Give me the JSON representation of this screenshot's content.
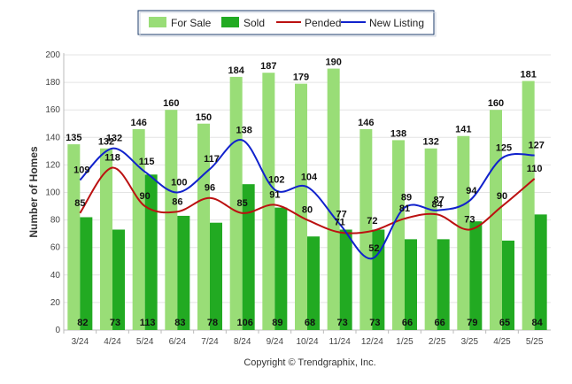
{
  "chart_data": {
    "type": "bar",
    "ylabel": "Number of Homes",
    "ylim": [
      0,
      200
    ],
    "yticks": [
      0,
      20,
      40,
      60,
      80,
      100,
      120,
      140,
      160,
      180,
      200
    ],
    "grid": true,
    "legend_position": "top-center",
    "categories": [
      "3/24",
      "4/24",
      "5/24",
      "6/24",
      "7/24",
      "8/24",
      "9/24",
      "10/24",
      "11/24",
      "12/24",
      "1/25",
      "2/25",
      "3/25",
      "4/25",
      "5/25"
    ],
    "series": [
      {
        "name": "For Sale",
        "kind": "bar",
        "color": "#99dd77",
        "values": [
          135,
          132,
          146,
          160,
          150,
          184,
          187,
          179,
          190,
          146,
          138,
          132,
          141,
          160,
          181
        ]
      },
      {
        "name": "Sold",
        "kind": "bar",
        "color": "#22aa22",
        "values": [
          82,
          73,
          113,
          83,
          78,
          106,
          89,
          68,
          73,
          73,
          66,
          66,
          79,
          65,
          84
        ]
      },
      {
        "name": "Pended",
        "kind": "line",
        "color": "#bb1111",
        "values": [
          85,
          118,
          90,
          86,
          96,
          85,
          91,
          80,
          71,
          72,
          81,
          84,
          73,
          90,
          110
        ]
      },
      {
        "name": "New Listing",
        "kind": "line",
        "color": "#1122cc",
        "values": [
          109,
          132,
          115,
          100,
          117,
          138,
          102,
          104,
          77,
          52,
          89,
          87,
          94,
          125,
          127
        ]
      }
    ]
  },
  "copyright": "Copyright © Trendgraphix, Inc."
}
